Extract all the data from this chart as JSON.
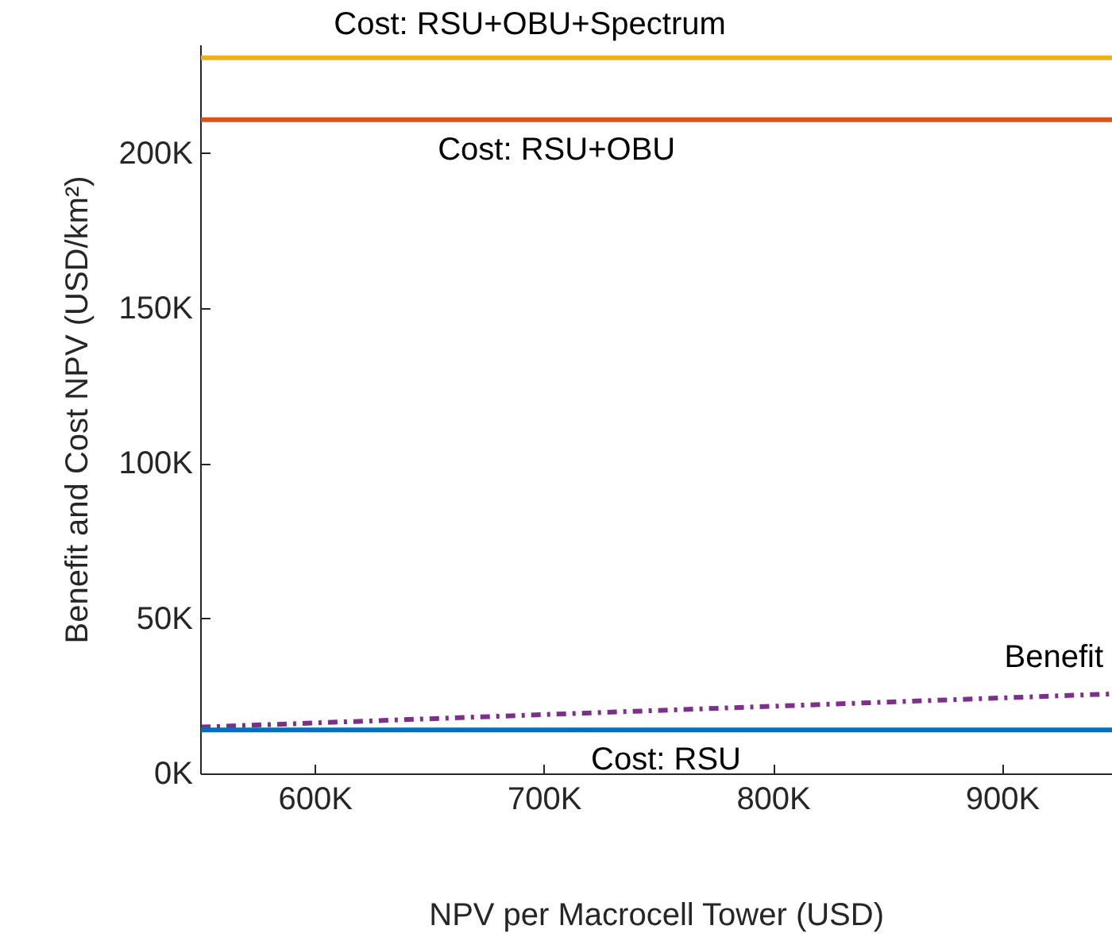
{
  "chart_data": {
    "type": "line",
    "xlabel": "NPV per Macrocell Tower (USD)",
    "ylabel": "Benefit and Cost NPV (USD/km²)",
    "xlim": [
      550000,
      948000
    ],
    "ylim": [
      0,
      235000
    ],
    "xticks": [
      {
        "value": 600000,
        "label": "600K"
      },
      {
        "value": 700000,
        "label": "700K"
      },
      {
        "value": 800000,
        "label": "800K"
      },
      {
        "value": 900000,
        "label": "900K"
      }
    ],
    "yticks": [
      {
        "value": 0,
        "label": "0K"
      },
      {
        "value": 50000,
        "label": "50K"
      },
      {
        "value": 100000,
        "label": "100K"
      },
      {
        "value": 150000,
        "label": "150K"
      },
      {
        "value": 200000,
        "label": "200K"
      }
    ],
    "grid": false,
    "marker": "none",
    "series": [
      {
        "name": "Benefit",
        "color": "#7e2f8e",
        "x": [
          550000,
          948000
        ],
        "values": [
          15200,
          25900
        ],
        "line_style": "dashdot"
      }
    ],
    "ref_lines": [
      {
        "axis": "y",
        "value": 231000,
        "label": "Cost: RSU+OBU+Spectrum",
        "color": "#edb120",
        "line_style": "solid"
      },
      {
        "axis": "y",
        "value": 211000,
        "label": "Cost: RSU+OBU",
        "color": "#d95319",
        "line_style": "solid"
      },
      {
        "axis": "y",
        "value": 14300,
        "label": "Cost: RSU",
        "color": "#0072bd",
        "line_style": "solid"
      }
    ]
  }
}
